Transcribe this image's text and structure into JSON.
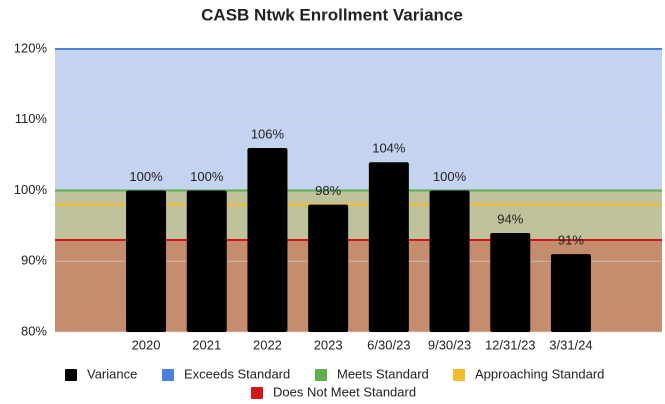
{
  "chart_data": {
    "type": "bar",
    "title": "CASB Ntwk Enrollment Variance",
    "categories": [
      "2020",
      "2021",
      "2022",
      "2023",
      "6/30/23",
      "9/30/23",
      "12/31/23",
      "3/31/24"
    ],
    "series": [
      {
        "name": "Variance",
        "color": "#000000",
        "values": [
          100,
          100,
          106,
          98,
          104,
          100,
          94,
          91
        ],
        "value_labels": [
          "100%",
          "100%",
          "106%",
          "98%",
          "104%",
          "100%",
          "94%",
          "91%"
        ]
      }
    ],
    "thresholds": [
      {
        "name": "Exceeds Standard",
        "color": "#4a7ee0",
        "value": 120,
        "band_color": "#c4d3f0"
      },
      {
        "name": "Meets Standard",
        "color": "#5fae4e",
        "value": 100,
        "band_color": "#bfc29b"
      },
      {
        "name": "Approaching Standard",
        "color": "#f2bd2c",
        "value": 98
      },
      {
        "name": "Does Not Meet Standard",
        "color": "#d0181b",
        "value": 93,
        "band_color": "#c68c6e"
      }
    ],
    "ylim": [
      80,
      120
    ],
    "yticks": [
      {
        "value": 80,
        "label": "80%"
      },
      {
        "value": 90,
        "label": "90%"
      },
      {
        "value": 100,
        "label": "100%"
      },
      {
        "value": 110,
        "label": "110%"
      },
      {
        "value": 120,
        "label": "120%"
      }
    ],
    "grid": true,
    "legend": "bottom"
  }
}
